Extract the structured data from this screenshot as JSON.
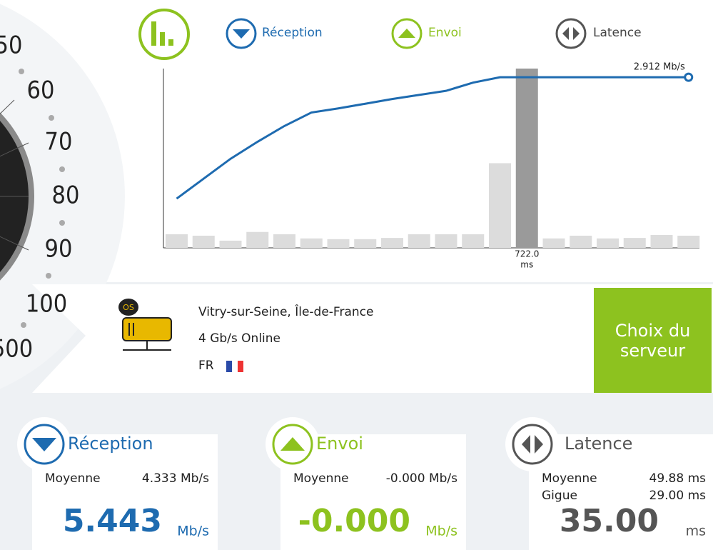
{
  "gauge": {
    "labels": [
      50,
      60,
      70,
      80,
      90,
      100,
      500
    ]
  },
  "chart_data": {
    "type": "bar",
    "legend": [
      "Réception",
      "Envoi",
      "Latence"
    ],
    "categories": [
      null,
      null,
      null,
      null,
      null,
      null,
      null,
      null,
      null,
      null,
      null,
      null,
      null,
      null,
      null,
      null,
      null,
      null,
      null,
      null
    ],
    "series": [
      {
        "name": "Latence",
        "type": "bar",
        "color": "#dcdcdc",
        "highlight_color": "#9a9a9a",
        "values": [
          55,
          49,
          29,
          64,
          55,
          38,
          35,
          35,
          40,
          55,
          55,
          55,
          341,
          722,
          38,
          49,
          38,
          40,
          52,
          49
        ],
        "value_labels": [
          null,
          null,
          null,
          null,
          null,
          null,
          null,
          null,
          null,
          null,
          null,
          null,
          null,
          "722.0",
          null,
          null,
          null,
          null,
          null,
          null
        ],
        "value_unit": "ms",
        "ylim": [
          0,
          722
        ]
      },
      {
        "name": "Réception",
        "type": "line",
        "color": "#1e6bb0",
        "values": [
          0.84,
          1.18,
          1.52,
          1.81,
          2.08,
          2.31,
          2.38,
          2.46,
          2.54,
          2.61,
          2.68,
          2.82,
          2.912,
          2.912,
          2.912,
          2.912,
          2.912,
          2.912,
          2.912,
          2.912
        ],
        "value_labels": [
          null,
          null,
          null,
          null,
          null,
          null,
          null,
          null,
          null,
          null,
          null,
          null,
          null,
          null,
          null,
          null,
          null,
          null,
          null,
          "2.912 Mb/s"
        ],
        "ylim": [
          0,
          3.06
        ]
      }
    ]
  },
  "server": {
    "location": "Vitry-sur-Seine, Île-de-France",
    "provider": "4 Gb/s Online",
    "country": "FR",
    "icon_label": "OS",
    "button": "Choix du serveur"
  },
  "cards": [
    {
      "title": "Réception",
      "rows": [
        {
          "label": "Moyenne",
          "value": "4.333 Mb/s"
        }
      ],
      "big": "5.443",
      "unit": "Mb/s"
    },
    {
      "title": "Envoi",
      "rows": [
        {
          "label": "Moyenne",
          "value": "-0.000 Mb/s"
        }
      ],
      "big": "-0.000",
      "unit": "Mb/s"
    },
    {
      "title": "Latence",
      "rows": [
        {
          "label": "Moyenne",
          "value": "49.88 ms"
        },
        {
          "label": "Gigue",
          "value": "29.00 ms"
        }
      ],
      "big": "35.00",
      "unit": "ms"
    }
  ]
}
